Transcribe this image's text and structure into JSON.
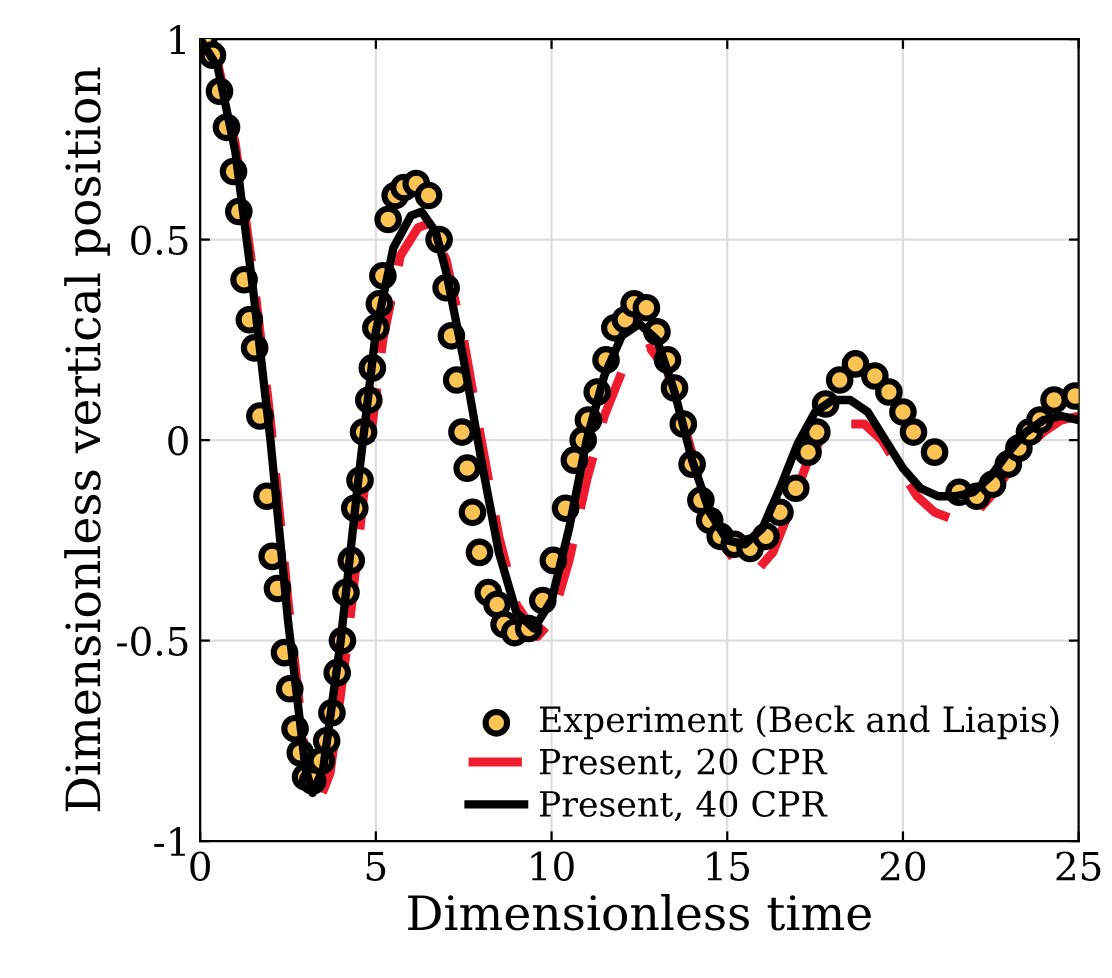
{
  "chart_data": {
    "type": "line",
    "xlabel": "Dimensionless time",
    "ylabel": "Dimensionless vertical position",
    "xlim": [
      0,
      25
    ],
    "xticks": [
      0,
      5,
      10,
      15,
      20,
      25
    ],
    "ylim": [
      -1,
      1
    ],
    "yticks": [
      {
        "value": -1,
        "label": "-1"
      },
      {
        "value": -0.5,
        "label": "-0.5"
      },
      0,
      0.5,
      1
    ],
    "grid": true,
    "legend": "bottom right",
    "series": [
      {
        "name": "Experiment (Beck and Liapis)",
        "type": "scatter",
        "marker": "circle",
        "color": "#fbc254",
        "x": [
          0.1,
          0.35,
          0.55,
          0.75,
          0.95,
          1.1,
          1.25,
          1.4,
          1.55,
          1.7,
          1.9,
          2.05,
          2.2,
          2.4,
          2.55,
          2.7,
          2.85,
          3.0,
          3.2,
          3.45,
          3.6,
          3.75,
          3.9,
          4.05,
          4.15,
          4.3,
          4.4,
          4.55,
          4.65,
          4.8,
          4.9,
          5.0,
          5.1,
          5.2,
          5.35,
          5.55,
          5.8,
          6.15,
          6.5,
          6.8,
          7.0,
          7.15,
          7.3,
          7.45,
          7.6,
          7.75,
          7.95,
          8.2,
          8.45,
          8.65,
          8.95,
          9.35,
          9.75,
          10.05,
          10.4,
          10.65,
          10.9,
          11.05,
          11.3,
          11.55,
          11.8,
          12.1,
          12.35,
          12.7,
          13.0,
          13.3,
          13.5,
          13.75,
          14.0,
          14.25,
          14.5,
          14.8,
          15.2,
          15.65,
          16.1,
          16.5,
          16.95,
          17.3,
          17.55,
          17.8,
          18.2,
          18.65,
          19.2,
          19.6,
          20.0,
          20.3,
          20.9,
          21.6,
          22.1,
          22.55,
          23.0,
          23.3,
          23.6,
          23.9,
          24.3,
          24.9
        ],
        "values": [
          1.0,
          0.96,
          0.87,
          0.78,
          0.67,
          0.57,
          0.4,
          0.3,
          0.23,
          0.06,
          -0.14,
          -0.29,
          -0.37,
          -0.53,
          -0.62,
          -0.72,
          -0.78,
          -0.84,
          -0.85,
          -0.8,
          -0.75,
          -0.68,
          -0.58,
          -0.5,
          -0.38,
          -0.3,
          -0.17,
          -0.1,
          0.02,
          0.1,
          0.18,
          0.28,
          0.34,
          0.41,
          0.55,
          0.61,
          0.63,
          0.64,
          0.61,
          0.5,
          0.38,
          0.26,
          0.15,
          0.02,
          -0.07,
          -0.18,
          -0.28,
          -0.38,
          -0.41,
          -0.46,
          -0.48,
          -0.47,
          -0.4,
          -0.3,
          -0.17,
          -0.05,
          0.0,
          0.05,
          0.12,
          0.2,
          0.28,
          0.3,
          0.34,
          0.33,
          0.27,
          0.2,
          0.13,
          0.04,
          -0.06,
          -0.15,
          -0.2,
          -0.24,
          -0.26,
          -0.27,
          -0.24,
          -0.18,
          -0.12,
          -0.03,
          0.02,
          0.09,
          0.15,
          0.19,
          0.16,
          0.12,
          0.07,
          0.02,
          -0.03,
          -0.13,
          -0.14,
          -0.11,
          -0.06,
          -0.02,
          0.02,
          0.05,
          0.1,
          0.11
        ]
      },
      {
        "name": "Present, 20 CPR",
        "line_style": "dashed",
        "color": "#ee1c2e",
        "x": [
          0,
          0.5,
          1,
          1.5,
          2,
          2.5,
          3,
          3.3,
          3.7,
          4.2,
          4.7,
          5.2,
          5.7,
          6.2,
          6.5,
          7,
          7.5,
          8,
          8.5,
          9,
          9.6,
          10,
          10.5,
          11,
          11.5,
          12,
          12.5,
          12.8,
          13.3,
          13.8,
          14.3,
          14.8,
          15.3,
          15.8,
          16.3,
          16.8,
          17.3,
          17.8,
          18.4,
          18.9,
          19.4,
          19.9,
          20.4,
          20.9,
          21.5,
          22,
          22.5,
          23,
          23.5,
          24,
          24.5,
          25
        ],
        "values": [
          1.0,
          0.94,
          0.74,
          0.42,
          0.05,
          -0.4,
          -0.8,
          -0.92,
          -0.83,
          -0.5,
          -0.1,
          0.25,
          0.46,
          0.53,
          0.54,
          0.45,
          0.25,
          0.0,
          -0.24,
          -0.41,
          -0.49,
          -0.45,
          -0.3,
          -0.1,
          0.06,
          0.17,
          0.22,
          0.23,
          0.17,
          0.03,
          -0.13,
          -0.25,
          -0.31,
          -0.33,
          -0.28,
          -0.17,
          -0.05,
          0.02,
          0.04,
          0.04,
          0.0,
          -0.07,
          -0.14,
          -0.18,
          -0.2,
          -0.19,
          -0.14,
          -0.08,
          -0.02,
          0.02,
          0.05,
          0.06
        ]
      },
      {
        "name": "Present, 40 CPR",
        "line_style": "solid",
        "color": "#000000",
        "x": [
          0,
          0.5,
          1,
          1.5,
          2,
          2.5,
          3,
          3.2,
          3.5,
          4,
          4.5,
          5,
          5.5,
          6,
          6.3,
          6.7,
          7,
          7.5,
          8,
          8.5,
          9,
          9.5,
          10,
          10.5,
          11,
          11.5,
          12,
          12.5,
          13,
          13.5,
          14,
          14.5,
          15,
          15.5,
          16,
          16.5,
          17,
          17.5,
          18,
          18.5,
          19,
          19.5,
          20,
          20.5,
          21,
          21.5,
          22,
          22.5,
          23,
          23.5,
          24,
          24.5,
          25
        ],
        "values": [
          1.0,
          0.93,
          0.72,
          0.38,
          0.0,
          -0.45,
          -0.82,
          -0.88,
          -0.82,
          -0.5,
          -0.1,
          0.27,
          0.48,
          0.56,
          0.57,
          0.52,
          0.42,
          0.2,
          -0.05,
          -0.28,
          -0.43,
          -0.47,
          -0.4,
          -0.22,
          0.0,
          0.16,
          0.26,
          0.29,
          0.25,
          0.12,
          -0.05,
          -0.18,
          -0.25,
          -0.26,
          -0.22,
          -0.12,
          -0.01,
          0.07,
          0.1,
          0.1,
          0.07,
          0.0,
          -0.07,
          -0.12,
          -0.14,
          -0.14,
          -0.13,
          -0.09,
          -0.03,
          0.02,
          0.05,
          0.06,
          0.05
        ]
      }
    ]
  }
}
